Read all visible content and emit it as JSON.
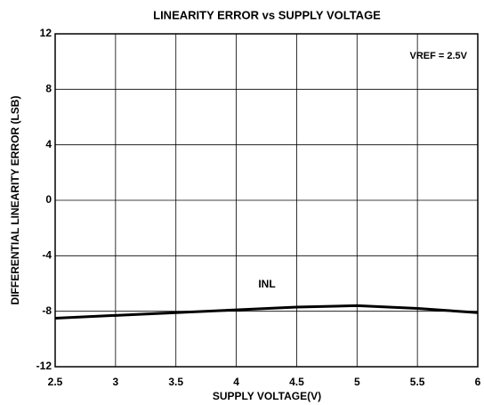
{
  "chart_data": {
    "type": "line",
    "title": "LINEARITY ERROR vs SUPPLY VOLTAGE",
    "xlabel": "SUPPLY VOLTAGE(V)",
    "ylabel": "DIFFERENTIAL LINEARITY ERROR (LSB)",
    "annotations": [
      "VREF = 2.5V",
      "INL"
    ],
    "x": [
      2.5,
      3,
      3.5,
      4,
      4.5,
      5,
      5.5,
      6
    ],
    "series": [
      {
        "name": "INL",
        "color": "#000000",
        "values": [
          -8.5,
          -8.3,
          -8.1,
          -7.9,
          -7.7,
          -7.6,
          -7.8,
          -8.1
        ]
      }
    ],
    "xlim": [
      2.5,
      6
    ],
    "xticks": [
      2.5,
      3,
      3.5,
      4,
      4.5,
      5,
      5.5,
      6
    ],
    "ylim": [
      -12,
      12
    ],
    "yticks": [
      -12,
      -8,
      -4,
      0,
      4,
      8,
      12
    ],
    "grid": true
  }
}
